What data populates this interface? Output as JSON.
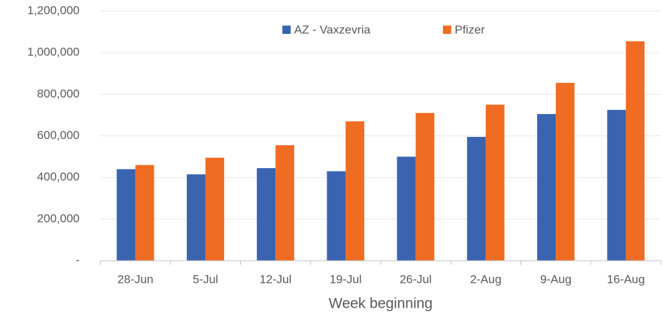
{
  "chart_data": {
    "type": "bar",
    "x_label": "Week beginning",
    "categories": [
      "28-Jun",
      "5-Jul",
      "12-Jul",
      "19-Jul",
      "26-Jul",
      "2-Aug",
      "9-Aug",
      "16-Aug"
    ],
    "series": [
      {
        "name": "AZ - Vaxzevria",
        "color": "#3a64b0",
        "values": [
          440000,
          415000,
          445000,
          430000,
          500000,
          595000,
          705000,
          725000
        ]
      },
      {
        "name": "Pfizer",
        "color": "#ef6c22",
        "values": [
          460000,
          495000,
          555000,
          670000,
          710000,
          750000,
          855000,
          1055000
        ]
      }
    ],
    "ylim": [
      0,
      1200000
    ],
    "yticks": [
      {
        "value": 0,
        "label": "-"
      },
      {
        "value": 200000,
        "label": "200,000"
      },
      {
        "value": 400000,
        "label": "400,000"
      },
      {
        "value": 600000,
        "label": "600,000"
      },
      {
        "value": 800000,
        "label": "800,000"
      },
      {
        "value": 1000000,
        "label": "1,000,000"
      },
      {
        "value": 1200000,
        "label": "1,200,000"
      }
    ],
    "grid": true,
    "legend": "top"
  }
}
